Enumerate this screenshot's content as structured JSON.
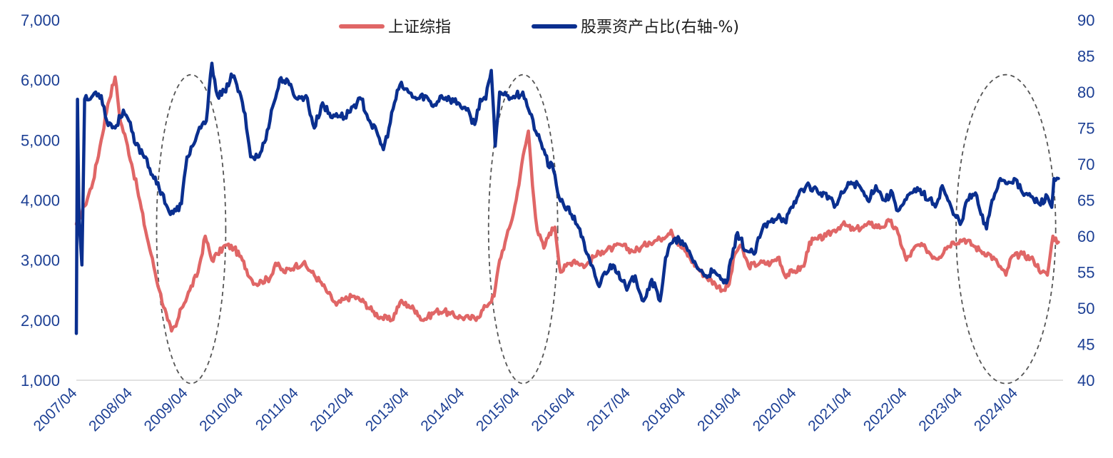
{
  "chart_data": {
    "type": "line",
    "title": "",
    "colors": {
      "sse": "#e06666",
      "equity": "#0a2f8f",
      "axis_text": "#1c3f94",
      "ellipse": "#555555"
    },
    "legend": [
      {
        "key": "sse",
        "label": "上证综指"
      },
      {
        "key": "equity",
        "label": "股票资产占比(右轴-%)"
      }
    ],
    "legend_position": "top-center",
    "x_start": "2007/04",
    "x_end": "2025/02",
    "x_ticks": [
      "2007/04",
      "2008/04",
      "2009/04",
      "2010/04",
      "2011/04",
      "2012/04",
      "2013/04",
      "2014/04",
      "2015/04",
      "2016/04",
      "2017/04",
      "2018/04",
      "2019/04",
      "2020/04",
      "2021/04",
      "2022/04",
      "2023/04",
      "2024/04"
    ],
    "left_axis": {
      "min": 1000,
      "max": 7000,
      "ticks": [
        "1,000",
        "2,000",
        "3,000",
        "4,000",
        "5,000",
        "6,000",
        "7,000"
      ]
    },
    "right_axis": {
      "min": 40,
      "max": 90,
      "ticks": [
        "40",
        "45",
        "50",
        "55",
        "60",
        "65",
        "70",
        "75",
        "80",
        "85",
        "90"
      ]
    },
    "series": [
      {
        "name": "上证综指",
        "axis": "left",
        "points": [
          [
            2007.25,
            3600
          ],
          [
            2007.4,
            3900
          ],
          [
            2007.55,
            4300
          ],
          [
            2007.7,
            5000
          ],
          [
            2007.82,
            5600
          ],
          [
            2007.95,
            6050
          ],
          [
            2008.05,
            5300
          ],
          [
            2008.15,
            5000
          ],
          [
            2008.25,
            4600
          ],
          [
            2008.35,
            4200
          ],
          [
            2008.5,
            3500
          ],
          [
            2008.6,
            3100
          ],
          [
            2008.75,
            2500
          ],
          [
            2008.9,
            2000
          ],
          [
            2008.97,
            1820
          ],
          [
            2009.05,
            1900
          ],
          [
            2009.15,
            2200
          ],
          [
            2009.3,
            2500
          ],
          [
            2009.45,
            2800
          ],
          [
            2009.58,
            3400
          ],
          [
            2009.7,
            3000
          ],
          [
            2009.8,
            3100
          ],
          [
            2009.95,
            3250
          ],
          [
            2010.1,
            3200
          ],
          [
            2010.25,
            3000
          ],
          [
            2010.4,
            2700
          ],
          [
            2010.5,
            2600
          ],
          [
            2010.6,
            2650
          ],
          [
            2010.75,
            2700
          ],
          [
            2010.85,
            2950
          ],
          [
            2011.0,
            2800
          ],
          [
            2011.2,
            2900
          ],
          [
            2011.35,
            2950
          ],
          [
            2011.5,
            2800
          ],
          [
            2011.65,
            2650
          ],
          [
            2011.8,
            2450
          ],
          [
            2011.95,
            2250
          ],
          [
            2012.1,
            2350
          ],
          [
            2012.25,
            2400
          ],
          [
            2012.45,
            2300
          ],
          [
            2012.6,
            2150
          ],
          [
            2012.75,
            2050
          ],
          [
            2012.95,
            2000
          ],
          [
            2013.1,
            2300
          ],
          [
            2013.25,
            2250
          ],
          [
            2013.4,
            2150
          ],
          [
            2013.5,
            2000
          ],
          [
            2013.6,
            2050
          ],
          [
            2013.75,
            2150
          ],
          [
            2013.9,
            2150
          ],
          [
            2014.0,
            2100
          ],
          [
            2014.2,
            2050
          ],
          [
            2014.35,
            2030
          ],
          [
            2014.5,
            2050
          ],
          [
            2014.65,
            2230
          ],
          [
            2014.8,
            2400
          ],
          [
            2014.9,
            3000
          ],
          [
            2015.0,
            3300
          ],
          [
            2015.1,
            3600
          ],
          [
            2015.2,
            4000
          ],
          [
            2015.3,
            4600
          ],
          [
            2015.42,
            5150
          ],
          [
            2015.52,
            4000
          ],
          [
            2015.58,
            3500
          ],
          [
            2015.7,
            3200
          ],
          [
            2015.8,
            3450
          ],
          [
            2015.9,
            3550
          ],
          [
            2016.0,
            2800
          ],
          [
            2016.1,
            2900
          ],
          [
            2016.25,
            3000
          ],
          [
            2016.45,
            2900
          ],
          [
            2016.6,
            3050
          ],
          [
            2016.75,
            3150
          ],
          [
            2016.95,
            3200
          ],
          [
            2017.1,
            3250
          ],
          [
            2017.3,
            3150
          ],
          [
            2017.45,
            3200
          ],
          [
            2017.6,
            3300
          ],
          [
            2017.8,
            3350
          ],
          [
            2018.0,
            3500
          ],
          [
            2018.1,
            3300
          ],
          [
            2018.25,
            3150
          ],
          [
            2018.45,
            2900
          ],
          [
            2018.6,
            2750
          ],
          [
            2018.8,
            2600
          ],
          [
            2018.95,
            2500
          ],
          [
            2019.05,
            2600
          ],
          [
            2019.15,
            3100
          ],
          [
            2019.25,
            3250
          ],
          [
            2019.4,
            2900
          ],
          [
            2019.6,
            2950
          ],
          [
            2019.8,
            2950
          ],
          [
            2019.95,
            3050
          ],
          [
            2020.05,
            2750
          ],
          [
            2020.2,
            2800
          ],
          [
            2020.4,
            2900
          ],
          [
            2020.5,
            3300
          ],
          [
            2020.65,
            3350
          ],
          [
            2020.8,
            3400
          ],
          [
            2020.95,
            3500
          ],
          [
            2021.1,
            3600
          ],
          [
            2021.3,
            3500
          ],
          [
            2021.45,
            3550
          ],
          [
            2021.6,
            3600
          ],
          [
            2021.8,
            3550
          ],
          [
            2021.95,
            3650
          ],
          [
            2022.1,
            3450
          ],
          [
            2022.25,
            3000
          ],
          [
            2022.45,
            3250
          ],
          [
            2022.6,
            3200
          ],
          [
            2022.75,
            3050
          ],
          [
            2022.85,
            3050
          ],
          [
            2022.95,
            3200
          ],
          [
            2023.1,
            3300
          ],
          [
            2023.3,
            3350
          ],
          [
            2023.45,
            3250
          ],
          [
            2023.6,
            3150
          ],
          [
            2023.75,
            3100
          ],
          [
            2023.9,
            2950
          ],
          [
            2024.05,
            2750
          ],
          [
            2024.15,
            3050
          ],
          [
            2024.35,
            3100
          ],
          [
            2024.55,
            3000
          ],
          [
            2024.7,
            2800
          ],
          [
            2024.8,
            2750
          ],
          [
            2024.9,
            3400
          ],
          [
            2025.0,
            3300
          ]
        ]
      },
      {
        "name": "股票资产占比(右轴-%)",
        "axis": "right",
        "points": [
          [
            2007.25,
            46.5
          ],
          [
            2007.27,
            79
          ],
          [
            2007.3,
            62
          ],
          [
            2007.35,
            56
          ],
          [
            2007.4,
            79
          ],
          [
            2007.5,
            79
          ],
          [
            2007.6,
            80
          ],
          [
            2007.7,
            79.5
          ],
          [
            2007.8,
            76
          ],
          [
            2007.95,
            75
          ],
          [
            2008.1,
            77.5
          ],
          [
            2008.2,
            76
          ],
          [
            2008.3,
            73
          ],
          [
            2008.5,
            71
          ],
          [
            2008.65,
            68
          ],
          [
            2008.8,
            66
          ],
          [
            2008.95,
            63
          ],
          [
            2009.05,
            63.5
          ],
          [
            2009.15,
            64.5
          ],
          [
            2009.25,
            71
          ],
          [
            2009.35,
            72.5
          ],
          [
            2009.5,
            75
          ],
          [
            2009.6,
            76
          ],
          [
            2009.7,
            84
          ],
          [
            2009.8,
            79.5
          ],
          [
            2009.95,
            80
          ],
          [
            2010.05,
            82.5
          ],
          [
            2010.15,
            81
          ],
          [
            2010.3,
            77
          ],
          [
            2010.4,
            71
          ],
          [
            2010.55,
            71
          ],
          [
            2010.65,
            73
          ],
          [
            2010.8,
            78
          ],
          [
            2010.95,
            82
          ],
          [
            2011.1,
            81
          ],
          [
            2011.25,
            79
          ],
          [
            2011.4,
            79.5
          ],
          [
            2011.55,
            75
          ],
          [
            2011.7,
            78.5
          ],
          [
            2011.85,
            76.5
          ],
          [
            2011.95,
            77
          ],
          [
            2012.1,
            76.5
          ],
          [
            2012.25,
            78
          ],
          [
            2012.4,
            79
          ],
          [
            2012.55,
            76
          ],
          [
            2012.7,
            74
          ],
          [
            2012.8,
            72
          ],
          [
            2012.9,
            75
          ],
          [
            2013.0,
            78.5
          ],
          [
            2013.1,
            81
          ],
          [
            2013.25,
            80
          ],
          [
            2013.4,
            79
          ],
          [
            2013.55,
            79.5
          ],
          [
            2013.7,
            78
          ],
          [
            2013.85,
            79.5
          ],
          [
            2014.0,
            79
          ],
          [
            2014.15,
            78.5
          ],
          [
            2014.3,
            77.5
          ],
          [
            2014.45,
            75.5
          ],
          [
            2014.55,
            79
          ],
          [
            2014.65,
            79
          ],
          [
            2014.75,
            83
          ],
          [
            2014.82,
            72.5
          ],
          [
            2014.9,
            80
          ],
          [
            2015.05,
            79.5
          ],
          [
            2015.2,
            79.5
          ],
          [
            2015.32,
            80
          ],
          [
            2015.45,
            77
          ],
          [
            2015.58,
            74
          ],
          [
            2015.7,
            72
          ],
          [
            2015.8,
            69.5
          ],
          [
            2015.85,
            70
          ],
          [
            2015.95,
            66
          ],
          [
            2016.05,
            64.5
          ],
          [
            2016.2,
            63
          ],
          [
            2016.35,
            61
          ],
          [
            2016.45,
            58
          ],
          [
            2016.55,
            56
          ],
          [
            2016.7,
            53
          ],
          [
            2016.8,
            55
          ],
          [
            2016.95,
            56
          ],
          [
            2017.05,
            55
          ],
          [
            2017.2,
            52.5
          ],
          [
            2017.35,
            54.5
          ],
          [
            2017.5,
            51
          ],
          [
            2017.65,
            54
          ],
          [
            2017.8,
            51
          ],
          [
            2017.9,
            57
          ],
          [
            2018.0,
            59
          ],
          [
            2018.15,
            59.5
          ],
          [
            2018.3,
            58
          ],
          [
            2018.45,
            56
          ],
          [
            2018.6,
            54.5
          ],
          [
            2018.75,
            55
          ],
          [
            2018.9,
            54
          ],
          [
            2019.0,
            53.5
          ],
          [
            2019.1,
            57
          ],
          [
            2019.2,
            60.5
          ],
          [
            2019.35,
            58
          ],
          [
            2019.5,
            57.5
          ],
          [
            2019.65,
            61
          ],
          [
            2019.8,
            62
          ],
          [
            2019.95,
            63
          ],
          [
            2020.05,
            62
          ],
          [
            2020.2,
            64
          ],
          [
            2020.35,
            66.5
          ],
          [
            2020.5,
            67
          ],
          [
            2020.7,
            66
          ],
          [
            2020.85,
            65.5
          ],
          [
            2020.95,
            64
          ],
          [
            2021.1,
            66
          ],
          [
            2021.25,
            67.5
          ],
          [
            2021.4,
            67
          ],
          [
            2021.55,
            65
          ],
          [
            2021.7,
            67
          ],
          [
            2021.85,
            65
          ],
          [
            2022.0,
            66
          ],
          [
            2022.1,
            63.5
          ],
          [
            2022.2,
            64.5
          ],
          [
            2022.35,
            66
          ],
          [
            2022.5,
            66.5
          ],
          [
            2022.65,
            65
          ],
          [
            2022.8,
            64.5
          ],
          [
            2022.9,
            67
          ],
          [
            2022.98,
            65.5
          ],
          [
            2023.1,
            63
          ],
          [
            2023.25,
            62
          ],
          [
            2023.35,
            65
          ],
          [
            2023.5,
            66
          ],
          [
            2023.6,
            63
          ],
          [
            2023.7,
            61
          ],
          [
            2023.8,
            65
          ],
          [
            2023.95,
            68
          ],
          [
            2024.1,
            67.5
          ],
          [
            2024.2,
            68
          ],
          [
            2024.35,
            66
          ],
          [
            2024.5,
            65.5
          ],
          [
            2024.65,
            64.5
          ],
          [
            2024.8,
            65.5
          ],
          [
            2024.88,
            64
          ],
          [
            2024.92,
            68
          ],
          [
            2025.0,
            68
          ]
        ]
      }
    ],
    "annotations": [
      {
        "type": "dashed-ellipse",
        "label": "",
        "x_from": 2008.7,
        "x_to": 2009.95
      },
      {
        "type": "dashed-ellipse",
        "label": "",
        "x_from": 2014.7,
        "x_to": 2015.95
      },
      {
        "type": "dashed-ellipse",
        "label": "",
        "x_from": 2023.15,
        "x_to": 2024.95
      }
    ]
  }
}
